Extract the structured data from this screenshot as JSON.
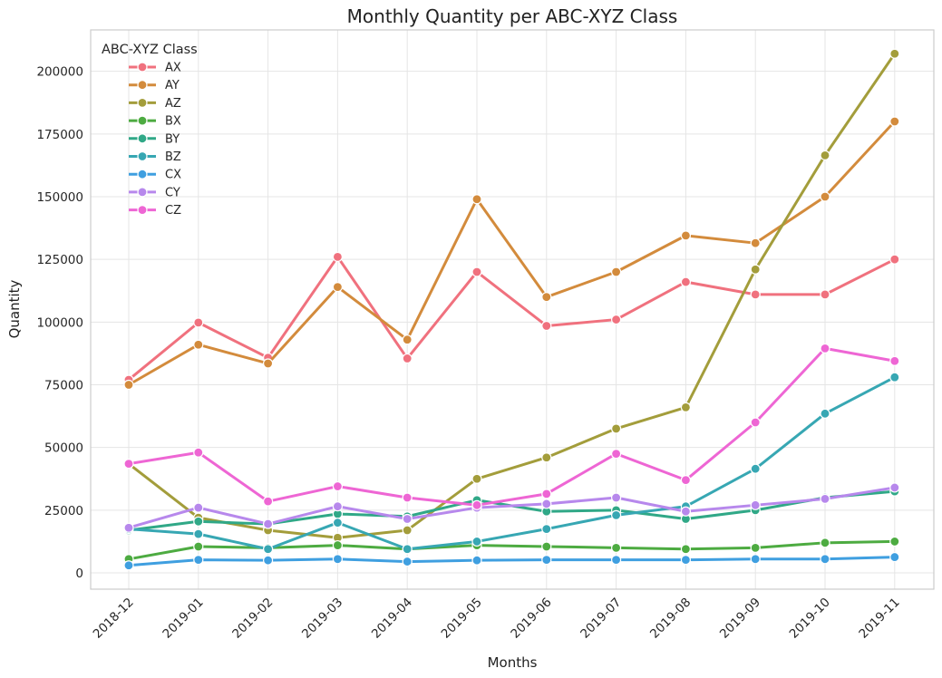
{
  "chart_data": {
    "type": "line",
    "title": "Monthly Quantity per ABC-XYZ Class",
    "xlabel": "Months",
    "ylabel": "Quantity",
    "categories": [
      "2018-12",
      "2019-01",
      "2019-02",
      "2019-03",
      "2019-04",
      "2019-05",
      "2019-06",
      "2019-07",
      "2019-08",
      "2019-09",
      "2019-10",
      "2019-11"
    ],
    "yticks": [
      "0",
      "25000",
      "50000",
      "75000",
      "100000",
      "125000",
      "150000",
      "175000",
      "200000"
    ],
    "ylim": [
      -6500,
      216500
    ],
    "grid": true,
    "legend": {
      "title": "ABC-XYZ Class",
      "placement": "top-left"
    },
    "series": [
      {
        "name": "AX",
        "color": "#f0717e",
        "values": [
          77000,
          99800,
          85800,
          126000,
          85500,
          120000,
          98500,
          101000,
          116000,
          111000,
          111000,
          125000
        ]
      },
      {
        "name": "AY",
        "color": "#d38b3c",
        "values": [
          75000,
          91000,
          83500,
          114000,
          93000,
          149000,
          110000,
          120000,
          134500,
          131500,
          150000,
          180000
        ]
      },
      {
        "name": "AZ",
        "color": "#a39d3b",
        "values": [
          43500,
          22000,
          17000,
          14000,
          17000,
          37500,
          46000,
          57500,
          66000,
          121000,
          166500,
          207000
        ]
      },
      {
        "name": "BX",
        "color": "#4dab41",
        "values": [
          5500,
          10500,
          10000,
          11000,
          9500,
          11000,
          10500,
          10000,
          9500,
          10000,
          12000,
          12500
        ]
      },
      {
        "name": "BY",
        "color": "#30a887",
        "values": [
          17000,
          20500,
          19500,
          23500,
          22500,
          29000,
          24500,
          25000,
          21500,
          25000,
          30000,
          32500
        ]
      },
      {
        "name": "BZ",
        "color": "#37a7b3",
        "values": [
          17500,
          15500,
          9500,
          20000,
          9500,
          12500,
          17500,
          23000,
          26500,
          41500,
          63500,
          78000
        ]
      },
      {
        "name": "CX",
        "color": "#3f9fe0",
        "values": [
          3000,
          5200,
          5000,
          5500,
          4500,
          5000,
          5200,
          5200,
          5200,
          5500,
          5500,
          6300
        ]
      },
      {
        "name": "CY",
        "color": "#b788ec",
        "values": [
          18000,
          26000,
          19500,
          26500,
          21500,
          26000,
          27500,
          30000,
          24500,
          27000,
          29500,
          34000
        ]
      },
      {
        "name": "CZ",
        "color": "#ee66d4",
        "values": [
          43500,
          48000,
          28500,
          34500,
          30000,
          27000,
          31500,
          47500,
          37000,
          60000,
          89500,
          84500
        ]
      }
    ]
  }
}
